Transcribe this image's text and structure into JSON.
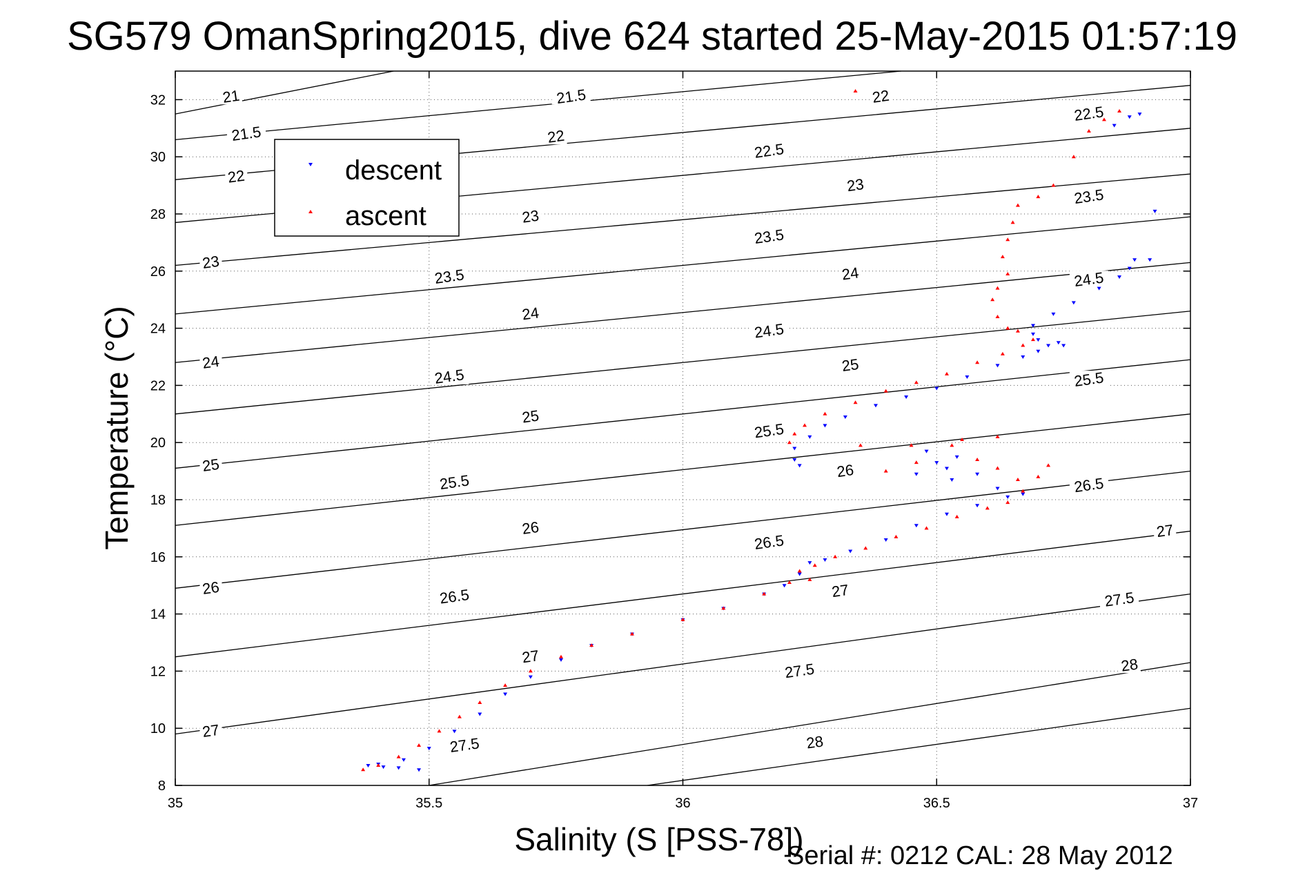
{
  "chart_data": {
    "type": "scatter",
    "title": "SG579 OmanSpring2015, dive 624 started 25-May-2015 01:57:19",
    "xlabel": "Salinity (S [PSS-78])",
    "ylabel": "Temperature (°C)",
    "xlim": [
      35,
      37
    ],
    "ylim": [
      8,
      33
    ],
    "xticks": [
      35,
      35.5,
      36,
      36.5,
      37
    ],
    "xtick_labels": [
      "35",
      "35.5",
      "36",
      "36.5",
      "37"
    ],
    "yticks": [
      8,
      10,
      12,
      14,
      16,
      18,
      20,
      22,
      24,
      26,
      28,
      30,
      32
    ],
    "ytick_labels": [
      "8",
      "10",
      "12",
      "14",
      "16",
      "18",
      "20",
      "22",
      "24",
      "26",
      "28",
      "30",
      "32"
    ],
    "grid": true,
    "legend_position": "top-left",
    "footnote": "Serial #: 0212  CAL: 28 May 2012",
    "density_contours": [
      {
        "level": 21,
        "p0": [
          35,
          31.5
        ],
        "p1": [
          35.43,
          33
        ]
      },
      {
        "level": 21.5,
        "p0": [
          35,
          30.6
        ],
        "p1": [
          36.43,
          33
        ]
      },
      {
        "level": 22,
        "p0": [
          35,
          29.2
        ],
        "p1": [
          37,
          32.5
        ]
      },
      {
        "level": 22.5,
        "p0": [
          35,
          27.7
        ],
        "p1": [
          37,
          31
        ]
      },
      {
        "level": 23,
        "p0": [
          35,
          26.2
        ],
        "p1": [
          37,
          29.4
        ]
      },
      {
        "level": 23.5,
        "p0": [
          35,
          24.5
        ],
        "p1": [
          37,
          27.9
        ]
      },
      {
        "level": 24,
        "p0": [
          35,
          22.8
        ],
        "p1": [
          37,
          26.3
        ]
      },
      {
        "level": 24.5,
        "p0": [
          35,
          21
        ],
        "p1": [
          37,
          24.6
        ]
      },
      {
        "level": 25,
        "p0": [
          35,
          19.1
        ],
        "p1": [
          37,
          22.9
        ]
      },
      {
        "level": 25.5,
        "p0": [
          35,
          17.1
        ],
        "p1": [
          37,
          21
        ]
      },
      {
        "level": 26,
        "p0": [
          35,
          14.9
        ],
        "p1": [
          37,
          19
        ]
      },
      {
        "level": 26.5,
        "p0": [
          35,
          12.5
        ],
        "p1": [
          37,
          16.9
        ]
      },
      {
        "level": 27,
        "p0": [
          35,
          9.8
        ],
        "p1": [
          37,
          14.7
        ]
      },
      {
        "level": 27.5,
        "p0": [
          35.5,
          8
        ],
        "p1": [
          37,
          12.3
        ]
      },
      {
        "level": 28,
        "p0": [
          35.93,
          8
        ],
        "p1": [
          37,
          10.7
        ]
      }
    ],
    "contour_labels": [
      {
        "text": "21",
        "x": 35.11,
        "y": 32.1
      },
      {
        "text": "21.5",
        "x": 35.14,
        "y": 30.8
      },
      {
        "text": "22",
        "x": 35.12,
        "y": 29.3
      },
      {
        "text": "23",
        "x": 35.07,
        "y": 26.3
      },
      {
        "text": "24",
        "x": 35.07,
        "y": 22.8
      },
      {
        "text": "25",
        "x": 35.07,
        "y": 19.2
      },
      {
        "text": "26",
        "x": 35.07,
        "y": 14.9
      },
      {
        "text": "27",
        "x": 35.07,
        "y": 9.9
      },
      {
        "text": "21.5",
        "x": 35.78,
        "y": 32.1
      },
      {
        "text": "22",
        "x": 35.75,
        "y": 30.7
      },
      {
        "text": "23",
        "x": 35.7,
        "y": 27.9
      },
      {
        "text": "23.5",
        "x": 35.54,
        "y": 25.8
      },
      {
        "text": "24",
        "x": 35.7,
        "y": 24.5
      },
      {
        "text": "24.5",
        "x": 35.54,
        "y": 22.3
      },
      {
        "text": "25",
        "x": 35.7,
        "y": 20.9
      },
      {
        "text": "25.5",
        "x": 35.55,
        "y": 18.6
      },
      {
        "text": "26",
        "x": 35.7,
        "y": 17.0
      },
      {
        "text": "26.5",
        "x": 35.55,
        "y": 14.6
      },
      {
        "text": "27",
        "x": 35.7,
        "y": 12.5
      },
      {
        "text": "27.5",
        "x": 35.57,
        "y": 9.4
      },
      {
        "text": "22",
        "x": 36.39,
        "y": 32.1
      },
      {
        "text": "22.5",
        "x": 36.17,
        "y": 30.2
      },
      {
        "text": "23",
        "x": 36.34,
        "y": 29.0
      },
      {
        "text": "23.5",
        "x": 36.17,
        "y": 27.2
      },
      {
        "text": "24",
        "x": 36.33,
        "y": 25.9
      },
      {
        "text": "24.5",
        "x": 36.17,
        "y": 23.9
      },
      {
        "text": "25",
        "x": 36.33,
        "y": 22.7
      },
      {
        "text": "25.5",
        "x": 36.17,
        "y": 20.4
      },
      {
        "text": "26",
        "x": 36.32,
        "y": 19.0
      },
      {
        "text": "26.5",
        "x": 36.17,
        "y": 16.5
      },
      {
        "text": "27",
        "x": 36.31,
        "y": 14.8
      },
      {
        "text": "27.5",
        "x": 36.23,
        "y": 12.0
      },
      {
        "text": "28",
        "x": 36.26,
        "y": 9.5
      },
      {
        "text": "22.5",
        "x": 36.8,
        "y": 31.5
      },
      {
        "text": "23.5",
        "x": 36.8,
        "y": 28.6
      },
      {
        "text": "24.5",
        "x": 36.8,
        "y": 25.7
      },
      {
        "text": "25.5",
        "x": 36.8,
        "y": 22.2
      },
      {
        "text": "26.5",
        "x": 36.8,
        "y": 18.5
      },
      {
        "text": "27",
        "x": 36.95,
        "y": 16.9
      },
      {
        "text": "27.5",
        "x": 36.86,
        "y": 14.5
      },
      {
        "text": "28",
        "x": 36.88,
        "y": 12.2
      }
    ],
    "series": [
      {
        "name": "descent",
        "color": "#0000ff",
        "marker": "triangle-down",
        "points": [
          [
            35.38,
            8.7
          ],
          [
            35.41,
            8.65
          ],
          [
            35.44,
            8.62
          ],
          [
            35.48,
            8.55
          ],
          [
            35.4,
            8.75
          ],
          [
            35.45,
            8.9
          ],
          [
            35.5,
            9.3
          ],
          [
            35.55,
            9.9
          ],
          [
            35.6,
            10.5
          ],
          [
            35.65,
            11.2
          ],
          [
            35.7,
            11.8
          ],
          [
            35.76,
            12.4
          ],
          [
            35.82,
            12.9
          ],
          [
            35.9,
            13.3
          ],
          [
            36.0,
            13.8
          ],
          [
            36.08,
            14.2
          ],
          [
            36.16,
            14.7
          ],
          [
            36.2,
            15.0
          ],
          [
            36.23,
            15.4
          ],
          [
            36.25,
            15.8
          ],
          [
            36.28,
            15.9
          ],
          [
            36.33,
            16.2
          ],
          [
            36.4,
            16.6
          ],
          [
            36.46,
            17.1
          ],
          [
            36.52,
            17.5
          ],
          [
            36.58,
            17.8
          ],
          [
            36.64,
            18.1
          ],
          [
            36.67,
            18.2
          ],
          [
            36.62,
            18.4
          ],
          [
            36.58,
            18.9
          ],
          [
            36.54,
            19.5
          ],
          [
            36.52,
            19.1
          ],
          [
            36.48,
            19.7
          ],
          [
            36.5,
            19.3
          ],
          [
            36.46,
            18.9
          ],
          [
            36.53,
            18.7
          ],
          [
            36.22,
            19.4
          ],
          [
            36.22,
            19.8
          ],
          [
            36.23,
            19.2
          ],
          [
            36.25,
            20.2
          ],
          [
            36.28,
            20.6
          ],
          [
            36.32,
            20.9
          ],
          [
            36.38,
            21.3
          ],
          [
            36.44,
            21.6
          ],
          [
            36.5,
            21.9
          ],
          [
            36.56,
            22.3
          ],
          [
            36.62,
            22.7
          ],
          [
            36.67,
            23.0
          ],
          [
            36.7,
            23.2
          ],
          [
            36.72,
            23.4
          ],
          [
            36.74,
            23.5
          ],
          [
            36.75,
            23.4
          ],
          [
            36.7,
            23.6
          ],
          [
            36.69,
            23.8
          ],
          [
            36.69,
            24.1
          ],
          [
            36.73,
            24.5
          ],
          [
            36.77,
            24.9
          ],
          [
            36.82,
            25.4
          ],
          [
            36.86,
            25.8
          ],
          [
            36.88,
            26.1
          ],
          [
            36.89,
            26.4
          ],
          [
            36.92,
            26.4
          ],
          [
            36.93,
            28.1
          ],
          [
            36.85,
            31.1
          ],
          [
            36.88,
            31.4
          ],
          [
            36.9,
            31.5
          ]
        ]
      },
      {
        "name": "ascent",
        "color": "#ff0000",
        "marker": "triangle-up",
        "points": [
          [
            35.37,
            8.55
          ],
          [
            35.4,
            8.7
          ],
          [
            35.44,
            9.0
          ],
          [
            35.48,
            9.4
          ],
          [
            35.52,
            9.9
          ],
          [
            35.56,
            10.4
          ],
          [
            35.6,
            10.9
          ],
          [
            35.65,
            11.5
          ],
          [
            35.7,
            12.0
          ],
          [
            35.76,
            12.5
          ],
          [
            35.82,
            12.9
          ],
          [
            35.9,
            13.3
          ],
          [
            36.0,
            13.8
          ],
          [
            36.08,
            14.2
          ],
          [
            36.16,
            14.7
          ],
          [
            36.21,
            15.1
          ],
          [
            36.23,
            15.5
          ],
          [
            36.25,
            15.2
          ],
          [
            36.26,
            15.7
          ],
          [
            36.3,
            16.0
          ],
          [
            36.36,
            16.3
          ],
          [
            36.42,
            16.7
          ],
          [
            36.48,
            17.0
          ],
          [
            36.54,
            17.4
          ],
          [
            36.6,
            17.7
          ],
          [
            36.64,
            17.9
          ],
          [
            36.67,
            18.3
          ],
          [
            36.7,
            18.8
          ],
          [
            36.72,
            19.2
          ],
          [
            36.66,
            18.7
          ],
          [
            36.62,
            19.1
          ],
          [
            36.58,
            19.4
          ],
          [
            36.53,
            19.9
          ],
          [
            36.55,
            20.1
          ],
          [
            36.62,
            20.2
          ],
          [
            36.46,
            19.3
          ],
          [
            36.4,
            19.0
          ],
          [
            36.45,
            19.9
          ],
          [
            36.35,
            19.9
          ],
          [
            36.21,
            20.0
          ],
          [
            36.22,
            20.3
          ],
          [
            36.24,
            20.6
          ],
          [
            36.28,
            21.0
          ],
          [
            36.34,
            21.4
          ],
          [
            36.4,
            21.8
          ],
          [
            36.46,
            22.1
          ],
          [
            36.52,
            22.4
          ],
          [
            36.58,
            22.8
          ],
          [
            36.63,
            23.1
          ],
          [
            36.67,
            23.4
          ],
          [
            36.69,
            23.6
          ],
          [
            36.66,
            23.9
          ],
          [
            36.64,
            24.0
          ],
          [
            36.62,
            24.4
          ],
          [
            36.61,
            25.0
          ],
          [
            36.62,
            25.4
          ],
          [
            36.64,
            25.9
          ],
          [
            36.63,
            26.5
          ],
          [
            36.64,
            27.1
          ],
          [
            36.65,
            27.7
          ],
          [
            36.66,
            28.3
          ],
          [
            36.7,
            28.6
          ],
          [
            36.73,
            29.0
          ],
          [
            36.77,
            30.0
          ],
          [
            36.8,
            30.9
          ],
          [
            36.83,
            31.3
          ],
          [
            36.86,
            31.6
          ],
          [
            36.34,
            32.3
          ]
        ]
      }
    ]
  }
}
